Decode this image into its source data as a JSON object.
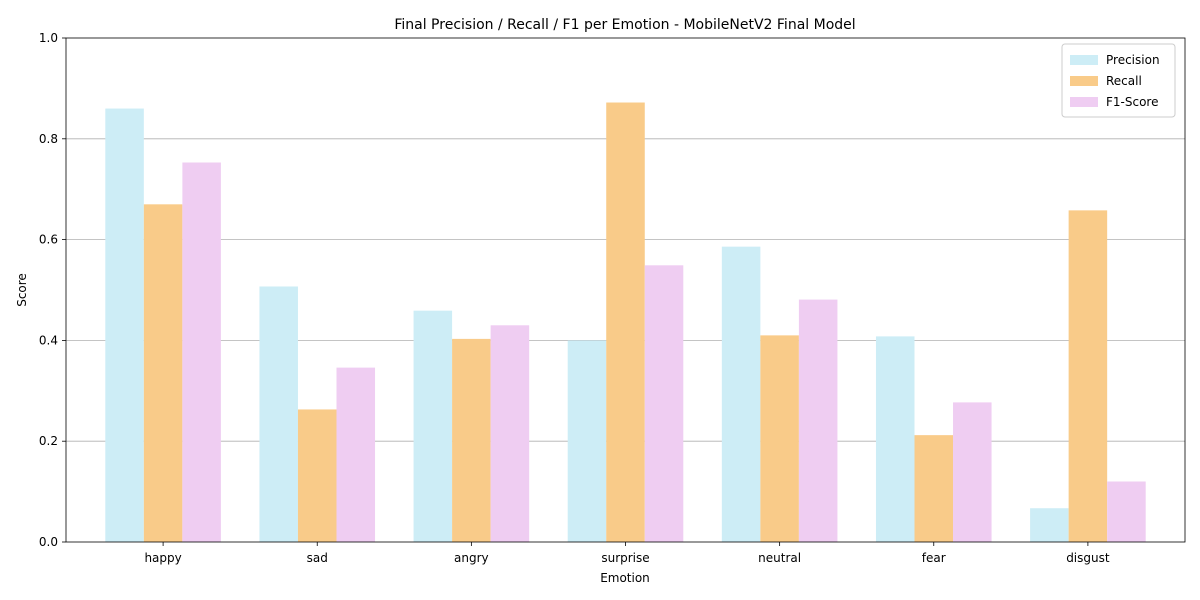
{
  "chart_data": {
    "type": "bar",
    "title": "Final Precision / Recall / F1 per Emotion - MobileNetV2 Final Model",
    "xlabel": "Emotion",
    "ylabel": "Score",
    "ylim": [
      0,
      1.0
    ],
    "yticks": [
      "0.0",
      "0.2",
      "0.4",
      "0.6",
      "0.8",
      "1.0"
    ],
    "grid": "y",
    "legend_position": "top-right",
    "categories": [
      "happy",
      "sad",
      "angry",
      "surprise",
      "neutral",
      "fear",
      "disgust"
    ],
    "series": [
      {
        "name": "Precision",
        "color": "#cdedf6",
        "values": [
          0.86,
          0.507,
          0.459,
          0.4,
          0.586,
          0.408,
          0.067
        ]
      },
      {
        "name": "Recall",
        "color": "#f9cb89",
        "values": [
          0.67,
          0.263,
          0.403,
          0.872,
          0.41,
          0.212,
          0.658
        ]
      },
      {
        "name": "F1-Score",
        "color": "#efcdf2",
        "values": [
          0.753,
          0.346,
          0.43,
          0.549,
          0.481,
          0.277,
          0.12
        ]
      }
    ]
  }
}
